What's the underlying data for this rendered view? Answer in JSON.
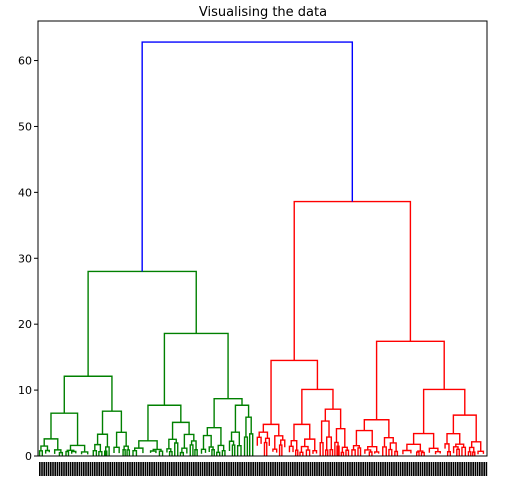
{
  "chart_data": {
    "type": "dendrogram",
    "title": "Visualising the data",
    "xlabel": "",
    "ylabel": "",
    "ylim": [
      0,
      66
    ],
    "yticks": [
      0,
      10,
      20,
      30,
      40,
      50,
      60
    ],
    "grid": false,
    "colors": {
      "root": "#0000ff",
      "cluster_left": "#008000",
      "cluster_right": "#ff0000",
      "axis": "#000000"
    },
    "merges": [
      {
        "id": "root",
        "height": 62.8,
        "children": [
          "g_root",
          "r_root"
        ],
        "color": "root"
      },
      {
        "id": "g_root",
        "height": 28.0,
        "children": [
          "g_a",
          "g_b"
        ],
        "color": "cluster_left"
      },
      {
        "id": "g_a",
        "height": 12.1,
        "children": [
          "g_a1",
          "g_a2"
        ],
        "color": "cluster_left"
      },
      {
        "id": "g_a1",
        "height": 6.5,
        "children": [
          "g_a1_l",
          "g_a1_r"
        ],
        "color": "cluster_left"
      },
      {
        "id": "g_a1_l",
        "height": 2.6,
        "children": [],
        "color": "cluster_left"
      },
      {
        "id": "g_a1_r",
        "height": 1.6,
        "children": [],
        "color": "cluster_left"
      },
      {
        "id": "g_a2",
        "height": 6.8,
        "children": [
          "g_a2_l",
          "g_a2_r"
        ],
        "color": "cluster_left"
      },
      {
        "id": "g_a2_l",
        "height": 3.3,
        "children": [],
        "color": "cluster_left"
      },
      {
        "id": "g_a2_r",
        "height": 3.6,
        "children": [],
        "color": "cluster_left"
      },
      {
        "id": "g_b",
        "height": 18.6,
        "children": [
          "g_b1",
          "g_b2"
        ],
        "color": "cluster_left"
      },
      {
        "id": "g_b1",
        "height": 7.7,
        "children": [
          "g_b1_l",
          "g_b1_r"
        ],
        "color": "cluster_left"
      },
      {
        "id": "g_b1_l",
        "height": 2.3,
        "children": [],
        "color": "cluster_left"
      },
      {
        "id": "g_b1_r",
        "height": 5.1,
        "children": [],
        "color": "cluster_left"
      },
      {
        "id": "g_b2",
        "height": 8.7,
        "children": [
          "g_b2_l",
          "g_b2_r"
        ],
        "color": "cluster_left"
      },
      {
        "id": "g_b2_l",
        "height": 4.3,
        "children": [],
        "color": "cluster_left"
      },
      {
        "id": "g_b2_r",
        "height": 7.7,
        "children": [],
        "color": "cluster_left"
      },
      {
        "id": "r_root",
        "height": 38.6,
        "children": [
          "r_a",
          "r_b"
        ],
        "color": "cluster_right"
      },
      {
        "id": "r_a",
        "height": 14.5,
        "children": [
          "r_a1",
          "r_a2"
        ],
        "color": "cluster_right"
      },
      {
        "id": "r_a1",
        "height": 4.8,
        "children": [],
        "color": "cluster_right"
      },
      {
        "id": "r_a2",
        "height": 10.1,
        "children": [
          "r_a2_l",
          "r_a2_r"
        ],
        "color": "cluster_right"
      },
      {
        "id": "r_a2_l",
        "height": 4.8,
        "children": [],
        "color": "cluster_right"
      },
      {
        "id": "r_a2_r",
        "height": 7.1,
        "children": [],
        "color": "cluster_right"
      },
      {
        "id": "r_b",
        "height": 17.4,
        "children": [
          "r_b1",
          "r_b2"
        ],
        "color": "cluster_right"
      },
      {
        "id": "r_b1",
        "height": 5.5,
        "children": [],
        "color": "cluster_right"
      },
      {
        "id": "r_b2",
        "height": 10.1,
        "children": [
          "r_b2_l",
          "r_b2_r"
        ],
        "color": "cluster_right"
      },
      {
        "id": "r_b2_l",
        "height": 3.4,
        "children": [],
        "color": "cluster_right"
      },
      {
        "id": "r_b2_r",
        "height": 6.2,
        "children": [],
        "color": "cluster_right"
      }
    ]
  }
}
